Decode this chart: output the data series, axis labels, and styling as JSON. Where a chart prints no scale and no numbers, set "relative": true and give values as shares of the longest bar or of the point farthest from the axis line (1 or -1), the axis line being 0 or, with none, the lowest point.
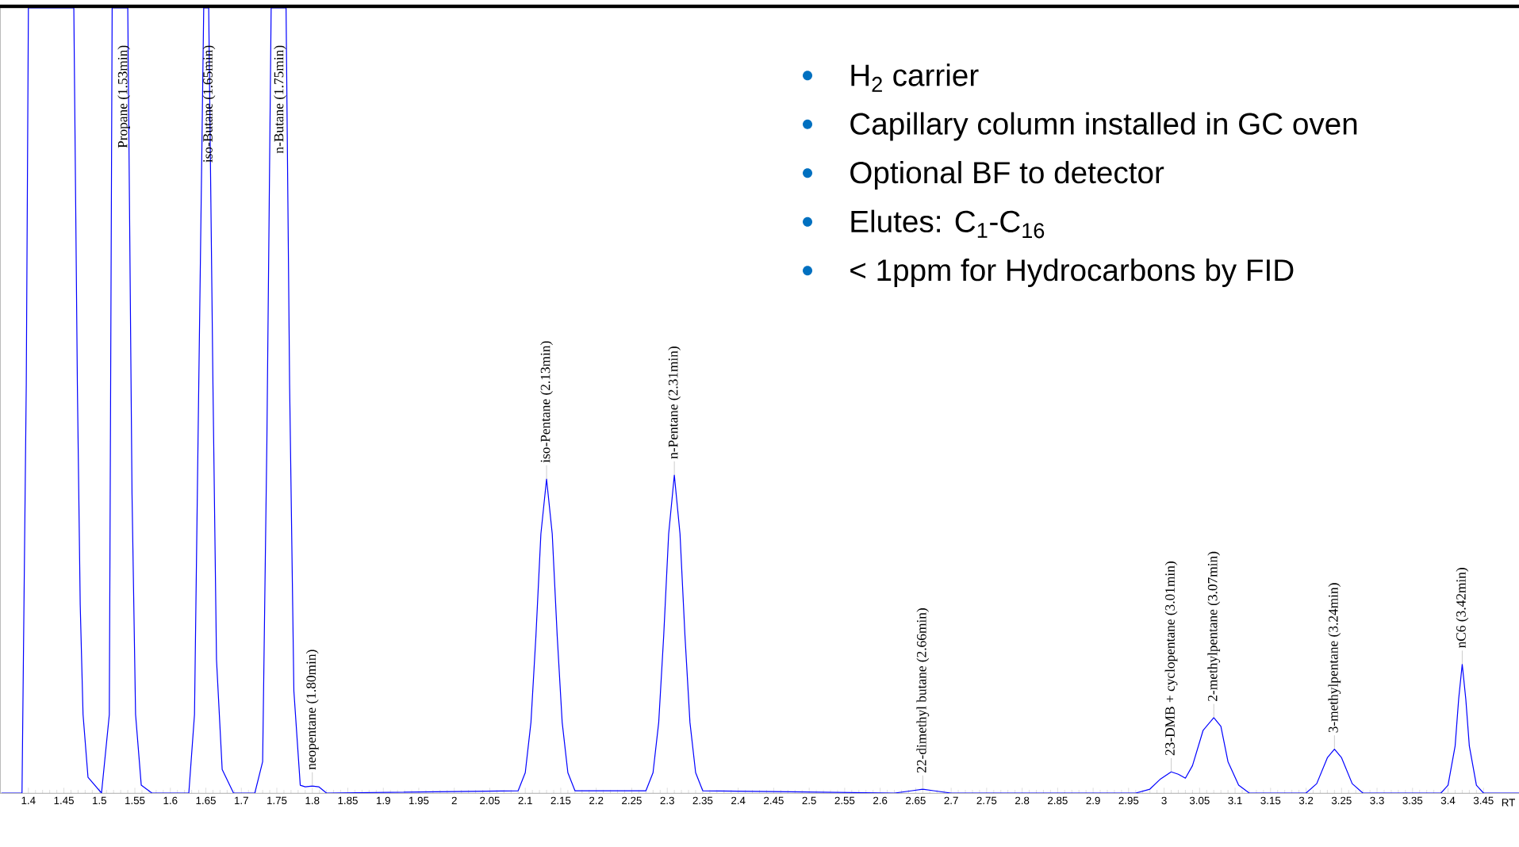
{
  "chart_data": {
    "type": "line",
    "relative": true,
    "xlabel": "RT",
    "xlim": [
      1.36,
      3.5
    ],
    "xticks": [
      1.4,
      1.45,
      1.5,
      1.55,
      1.6,
      1.65,
      1.7,
      1.75,
      1.8,
      1.85,
      1.9,
      1.95,
      2,
      2.05,
      2.1,
      2.15,
      2.2,
      2.25,
      2.3,
      2.35,
      2.4,
      2.45,
      2.5,
      2.55,
      2.6,
      2.65,
      2.7,
      2.75,
      2.8,
      2.85,
      2.9,
      2.95,
      3,
      3.05,
      3.1,
      3.15,
      3.2,
      3.25,
      3.3,
      3.35,
      3.4,
      3.45
    ],
    "marker": "none",
    "line_style": "solid",
    "series": [
      {
        "color": "#0000ff",
        "x": [
          1.362,
          1.391,
          1.397,
          1.4,
          1.464,
          1.469,
          1.473,
          1.477,
          1.484,
          1.503,
          1.514,
          1.518,
          1.54,
          1.546,
          1.551,
          1.559,
          1.574,
          1.626,
          1.634,
          1.639,
          1.647,
          1.654,
          1.66,
          1.665,
          1.673,
          1.689,
          1.719,
          1.73,
          1.736,
          1.742,
          1.763,
          1.768,
          1.774,
          1.783,
          1.79,
          1.8,
          1.809,
          1.82,
          2.09,
          2.1,
          2.108,
          2.115,
          2.122,
          2.13,
          2.138,
          2.145,
          2.152,
          2.16,
          2.17,
          2.27,
          2.28,
          2.288,
          2.295,
          2.302,
          2.31,
          2.318,
          2.325,
          2.332,
          2.34,
          2.35,
          2.62,
          2.645,
          2.66,
          2.675,
          2.7,
          2.96,
          2.98,
          2.995,
          3.01,
          3.02,
          3.03,
          3.04,
          3.055,
          3.07,
          3.08,
          3.09,
          3.105,
          3.12,
          3.2,
          3.215,
          3.23,
          3.24,
          3.25,
          3.265,
          3.28,
          3.39,
          3.4,
          3.41,
          3.415,
          3.42,
          3.425,
          3.43,
          3.44,
          3.45,
          3.5
        ],
        "values": [
          0,
          0,
          0.52,
          1,
          1,
          0.52,
          0.24,
          0.1,
          0.02,
          0,
          0.1,
          1,
          1,
          0.38,
          0.1,
          0.01,
          0,
          0,
          0.1,
          0.45,
          1,
          1,
          0.52,
          0.17,
          0.03,
          0,
          0,
          0.04,
          0.45,
          1,
          1,
          0.52,
          0.13,
          0.01,
          0.008,
          0.009,
          0.008,
          0,
          0.003,
          0.026,
          0.09,
          0.2,
          0.33,
          0.4,
          0.33,
          0.2,
          0.09,
          0.026,
          0.003,
          0.003,
          0.026,
          0.09,
          0.2,
          0.33,
          0.405,
          0.33,
          0.2,
          0.09,
          0.026,
          0.003,
          0,
          0.003,
          0.005,
          0.003,
          0,
          0,
          0.005,
          0.018,
          0.027,
          0.024,
          0.019,
          0.035,
          0.08,
          0.096,
          0.085,
          0.04,
          0.01,
          0,
          0,
          0.012,
          0.045,
          0.056,
          0.045,
          0.012,
          0,
          0,
          0.01,
          0.06,
          0.12,
          0.164,
          0.12,
          0.06,
          0.01,
          0,
          0
        ]
      }
    ],
    "annotations": [
      "H$_{2}$ carrier",
      "Capillary column installed in GC oven",
      "Optional BF to detector",
      "Elutes:  C$_{1}$-C$_{16}$",
      "< 1ppm for Hydrocarbons by FID",
      {
        "text": "Propane (1.53min)",
        "x": 1.53,
        "y": 1
      },
      {
        "text": "iso-Butane (1.65min)",
        "x": 1.65,
        "y": 1
      },
      {
        "text": "n-Butane (1.75min)",
        "x": 1.75,
        "y": 1
      },
      {
        "text": "neopentane (1.80min)",
        "x": 1.8,
        "y": 0.009
      },
      {
        "text": "iso-Pentane (2.13min)",
        "x": 2.13,
        "y": 0.4
      },
      {
        "text": "n-Pentane (2.31min)",
        "x": 2.31,
        "y": 0.405
      },
      {
        "text": "22-dimethyl butane (2.66min)",
        "x": 2.66,
        "y": 0.005
      },
      {
        "text": "23-DMB + cyclopentane (3.01min)",
        "x": 3.01,
        "y": 0.027
      },
      {
        "text": "2-methylpentane (3.07min)",
        "x": 3.07,
        "y": 0.096
      },
      {
        "text": "3-methylpentane (3.24min)",
        "x": 3.24,
        "y": 0.056
      },
      {
        "text": "nC6 (3.42min)",
        "x": 3.42,
        "y": 0.164
      }
    ]
  }
}
